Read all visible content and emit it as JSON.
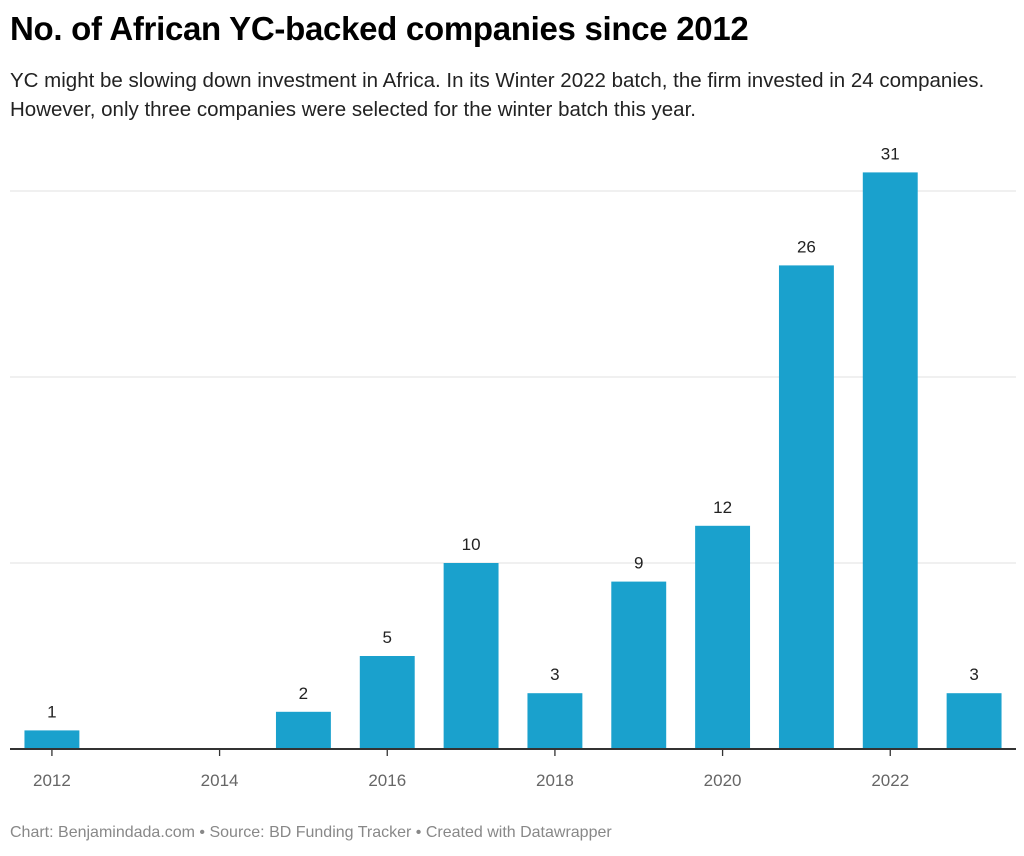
{
  "header": {
    "title": "No. of African YC-backed companies since 2012",
    "subtitle": "YC might be slowing down investment in Africa. In its Winter 2022 batch, the firm invested in 24 companies. However, only three companies were selected for the winter batch this year."
  },
  "footer": {
    "text": "Chart: Benjamindada.com • Source: BD Funding Tracker • Created with Datawrapper"
  },
  "chart_data": {
    "type": "bar",
    "title": "No. of African YC-backed companies since 2012",
    "xlabel": "",
    "ylabel": "",
    "categories": [
      "2012",
      "2013",
      "2014",
      "2015",
      "2016",
      "2017",
      "2018",
      "2019",
      "2020",
      "2021",
      "2022",
      "2023"
    ],
    "values": [
      1,
      0,
      0,
      2,
      5,
      10,
      3,
      9,
      12,
      26,
      31,
      3
    ],
    "data_labels": [
      "1",
      "",
      "",
      "2",
      "5",
      "10",
      "3",
      "9",
      "12",
      "26",
      "31",
      "3"
    ],
    "x_tick_labels": [
      "2012",
      "2014",
      "2016",
      "2018",
      "2020",
      "2022"
    ],
    "y_gridlines": [
      10,
      20,
      30
    ],
    "y_tick_labels_shown": false,
    "ylim": [
      0,
      30
    ],
    "grid": true,
    "legend": "none",
    "bar_color": "#1aa1cd"
  }
}
